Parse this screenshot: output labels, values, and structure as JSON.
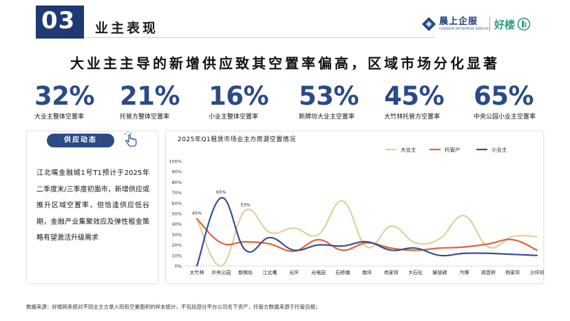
{
  "header": {
    "section_number": "03",
    "section_title": "业主表现",
    "brand_primary": "晨上企服",
    "brand_primary_sub": "CHENSUN ENTERPRISE SERVICES",
    "brand_secondary": "好楼"
  },
  "headline": "大业主主导的新增供应致其空置率偏高，区域市场分化显著",
  "kpis": [
    {
      "value": "32%",
      "label": "大业主整体空置率"
    },
    {
      "value": "21%",
      "label": "托管方整体空置率"
    },
    {
      "value": "16%",
      "label": "小业主整体空置率"
    },
    {
      "value": "53%",
      "label": "新牌坊大业主空置率"
    },
    {
      "value": "45%",
      "label": "大竹林托管方空置率"
    },
    {
      "value": "65%",
      "label": "中央公园小业主空置率"
    }
  ],
  "news": {
    "title": "供应动态",
    "body": "江北嘴金融城1号T1预计于2025年二季度末/三季度初面市，新增供应或推升区域空置率，但恰逢供应低谷期，金融产业集聚效应及弹性租金策略有望激活升级需求"
  },
  "footnote": "数据来源：好楼网系统对不同业主方录入现有空置面积的样本统计，不包括部分平台公司名下资产，托管方数据来源于托管自报；",
  "colors": {
    "navy": "#1f3a73",
    "kpi": "#2b4a86",
    "big_owner": "#e0d09a",
    "custodian": "#e0623a",
    "small_owner": "#34508f"
  },
  "chart_data": {
    "type": "line",
    "title": "2025年Q1租赁市场业主方房源空置情况",
    "categories": [
      "大竹林",
      "中央公园",
      "新牌坊",
      "江北嘴",
      "光环",
      "光电园",
      "石桥铺",
      "南坪",
      "冉家坝",
      "大石化",
      "解放碑",
      "汽博",
      "观音桥",
      "杨家坪",
      "沙坪坝"
    ],
    "ylim": [
      0,
      100
    ],
    "yticks": [
      "0%",
      "10%",
      "20%",
      "30%",
      "40%",
      "50%",
      "60%",
      "70%",
      "80%",
      "90%",
      "100%"
    ],
    "legend": "top-right",
    "series": [
      {
        "name": "大业主",
        "values": [
          45,
          0,
          53,
          32,
          36,
          30,
          62,
          18,
          38,
          22,
          26,
          48,
          18,
          28,
          28
        ]
      },
      {
        "name": "托管户",
        "values": [
          45,
          22,
          23,
          21,
          14,
          25,
          15,
          22,
          17,
          15,
          17,
          18,
          21,
          25,
          15
        ]
      },
      {
        "name": "小业主",
        "values": [
          0,
          65,
          15,
          27,
          15,
          20,
          19,
          23,
          15,
          17,
          10,
          12,
          12,
          11,
          10
        ]
      }
    ],
    "annotations": [
      {
        "category": "大竹林",
        "value": 45,
        "label": "45%"
      },
      {
        "category": "中央公园",
        "value": 65,
        "label": "65%"
      },
      {
        "category": "新牌坊",
        "value": 53,
        "label": "53%"
      }
    ]
  }
}
